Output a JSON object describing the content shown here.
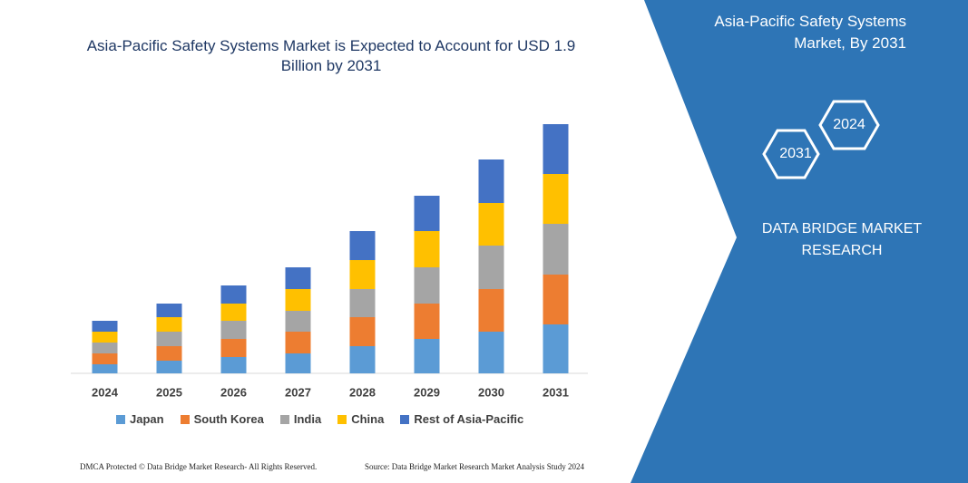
{
  "chart_data": {
    "type": "stacked_bar",
    "title": "Asia-Pacific Safety Systems Market is Expected to Account for USD 1.9 Billion by 2031",
    "categories": [
      "2024",
      "2025",
      "2026",
      "2027",
      "2028",
      "2029",
      "2030",
      "2031"
    ],
    "series": [
      {
        "name": "Japan",
        "color": "#5b9bd5",
        "values": [
          10,
          14,
          18,
          22,
          30,
          38,
          46,
          54
        ]
      },
      {
        "name": "South Korea",
        "color": "#ed7d31",
        "values": [
          12,
          16,
          20,
          24,
          32,
          39,
          47,
          55
        ]
      },
      {
        "name": "India",
        "color": "#a5a5a5",
        "values": [
          12,
          16,
          20,
          23,
          31,
          40,
          48,
          56
        ]
      },
      {
        "name": "China",
        "color": "#ffc000",
        "values": [
          12,
          16,
          19,
          24,
          32,
          40,
          47,
          55
        ]
      },
      {
        "name": "Rest of Asia-Pacific",
        "color": "#4472c4",
        "values": [
          12,
          15,
          20,
          24,
          32,
          39,
          48,
          55
        ]
      }
    ],
    "ylim": [
      0,
      275
    ],
    "legend": "bottom"
  },
  "side_panel": {
    "title": "Asia-Pacific Safety Systems Market, By 2031",
    "hexagons": [
      "2031",
      "2024"
    ],
    "brand": "DATA BRIDGE MARKET RESEARCH"
  },
  "footer": {
    "left": "DMCA Protected © Data Bridge Market Research-  All Rights Reserved.",
    "right": "Source: Data Bridge Market Research  Market Analysis Study 2024"
  }
}
